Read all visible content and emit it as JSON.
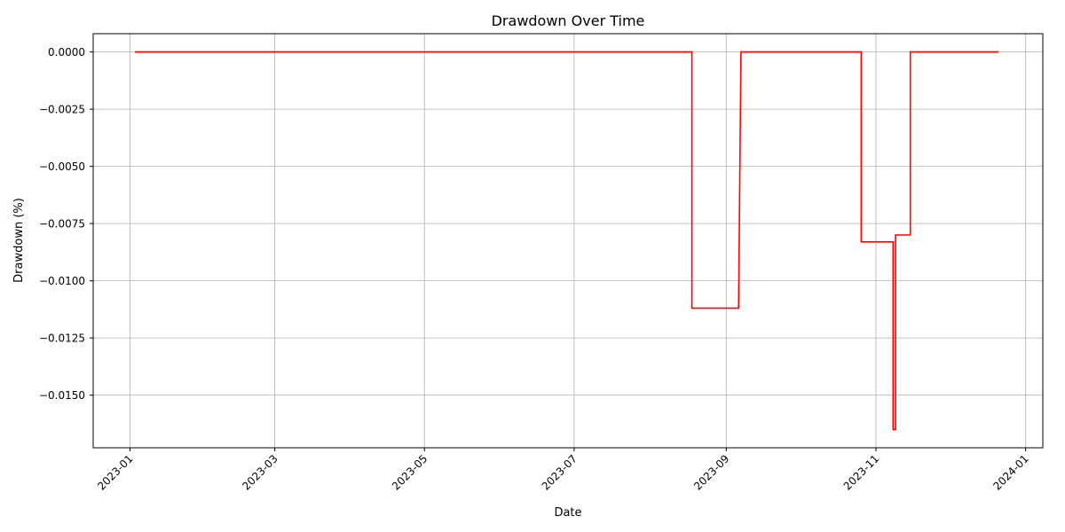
{
  "chart_data": {
    "type": "line",
    "title": "Drawdown Over Time",
    "xlabel": "Date",
    "ylabel": "Drawdown (%)",
    "xlim": [
      "2022-12-17",
      "2024-01-08"
    ],
    "ylim": [
      -0.0173,
      0.0008
    ],
    "grid": true,
    "x_ticks": [
      "2023-01",
      "2023-03",
      "2023-05",
      "2023-07",
      "2023-09",
      "2023-11",
      "2024-01"
    ],
    "y_ticks": [
      "0.0000",
      "−0.0025",
      "−0.0050",
      "−0.0075",
      "−0.0100",
      "−0.0125",
      "−0.0150"
    ],
    "series": [
      {
        "color": "#ff0000",
        "x": [
          "2023-01-03",
          "2023-08-18",
          "2023-08-18",
          "2023-09-06",
          "2023-09-07",
          "2023-10-26",
          "2023-10-26",
          "2023-11-08",
          "2023-11-08",
          "2023-11-09",
          "2023-11-09",
          "2023-11-15",
          "2023-11-15",
          "2023-12-21"
        ],
        "y": [
          0.0,
          0.0,
          -0.0112,
          -0.0112,
          0.0,
          0.0,
          -0.0083,
          -0.0083,
          -0.0165,
          -0.0165,
          -0.008,
          -0.008,
          0.0,
          0.0
        ]
      }
    ]
  }
}
